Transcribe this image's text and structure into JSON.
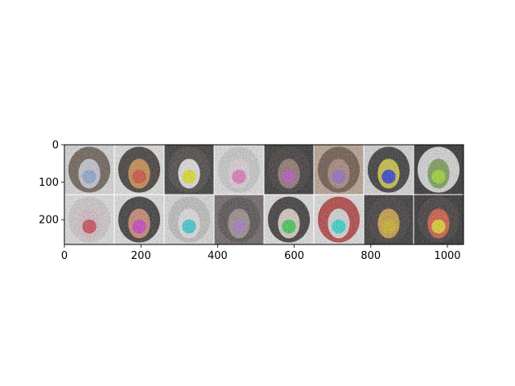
{
  "chart_data": {
    "type": "image-grid",
    "title": "",
    "xlabel": "",
    "ylabel": "",
    "xlim": [
      0,
      1042
    ],
    "ylim": [
      266,
      0
    ],
    "x_ticks": [
      0,
      200,
      400,
      600,
      800,
      1000
    ],
    "y_ticks": [
      0,
      100,
      200
    ],
    "grid": {
      "rows": 2,
      "cols": 8
    },
    "tiles": [
      {
        "bg": "#f4f4f4",
        "hair": "#5a4a3c",
        "face": "#d9d9e8",
        "spot": "#8fb0e6"
      },
      {
        "bg": "#ffffff",
        "hair": "#1c1410",
        "face": "#d8892c",
        "spot": "#e8341c"
      },
      {
        "bg": "#0d0d0d",
        "hair": "#2a2220",
        "face": "#ffffff",
        "spot": "#ffff00"
      },
      {
        "bg": "#ffffff",
        "hair": "#e0e0e0",
        "face": "#fbeaf2",
        "spot": "#ff6fd0"
      },
      {
        "bg": "#050505",
        "hair": "#1a1010",
        "face": "#8a6a60",
        "spot": "#c040c0"
      },
      {
        "bg": "#c8a890",
        "hair": "#5e3c2a",
        "face": "#b08070",
        "spot": "#9060d0"
      },
      {
        "bg": "#f0f0f0",
        "hair": "#101010",
        "face": "#e0d020",
        "spot": "#0a20e0"
      },
      {
        "bg": "#000000",
        "hair": "#f0f0f0",
        "face": "#70a040",
        "spot": "#a0f010"
      },
      {
        "bg": "#ffffff",
        "hair": "#e8e0e0",
        "face": "#f0d0d8",
        "spot": "#e03040"
      },
      {
        "bg": "#ffffff",
        "hair": "#141010",
        "face": "#e08060",
        "spot": "#e020d0"
      },
      {
        "bg": "#f8f8f8",
        "hair": "#d0d0d0",
        "face": "#ffffff",
        "spot": "#20e0f0"
      },
      {
        "bg": "#5a5050",
        "hair": "#3a3030",
        "face": "#9a8a88",
        "spot": "#b070d0"
      },
      {
        "bg": "#ffffff",
        "hair": "#141010",
        "face": "#f0e0d0",
        "spot": "#20e040"
      },
      {
        "bg": "#ffffff",
        "hair": "#c02020",
        "face": "#f0f0f0",
        "spot": "#10f0e0"
      },
      {
        "bg": "#0a0a0a",
        "hair": "#1a1212",
        "face": "#e0a020",
        "spot": "#e0c000"
      },
      {
        "bg": "#000000",
        "hair": "#1a1010",
        "face": "#e84020",
        "spot": "#ffe800"
      }
    ]
  }
}
